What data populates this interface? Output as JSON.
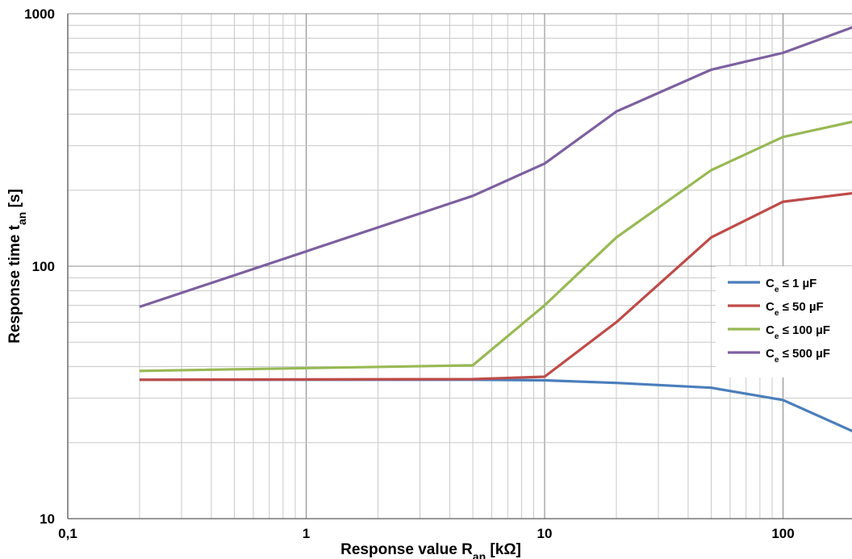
{
  "chart_data": {
    "type": "line",
    "x_scale": "log",
    "y_scale": "log",
    "xlim": [
      0.1,
      200
    ],
    "ylim": [
      10,
      1000
    ],
    "grid": true,
    "legend_position": "right",
    "x_ticks": [
      {
        "value": 0.1,
        "label": "0,1"
      },
      {
        "value": 1,
        "label": "1"
      },
      {
        "value": 10,
        "label": "10"
      },
      {
        "value": 100,
        "label": "100"
      }
    ],
    "y_ticks": [
      {
        "value": 10,
        "label": "10"
      },
      {
        "value": 100,
        "label": "100"
      },
      {
        "value": 1000,
        "label": "1000"
      }
    ],
    "xlabel": {
      "main": "Response value  R",
      "sub": "an",
      "tail": " [kΩ]"
    },
    "ylabel": {
      "main": "Response time  t",
      "sub": "an",
      "tail": " [s]"
    },
    "series": [
      {
        "name": {
          "main": "C",
          "sub": "e",
          "tail": " ≤ 1 µF"
        },
        "color": "#4a7ebb",
        "x": [
          0.2,
          5,
          10,
          20,
          50,
          100,
          200
        ],
        "y": [
          35.5,
          35.5,
          35.3,
          34.5,
          33,
          29.5,
          22
        ]
      },
      {
        "name": {
          "main": "C",
          "sub": "e",
          "tail": " ≤ 50 µF"
        },
        "color": "#be4b48",
        "x": [
          0.2,
          5,
          10,
          20,
          50,
          100,
          200
        ],
        "y": [
          35.5,
          35.7,
          36.5,
          60,
          130,
          180,
          195
        ]
      },
      {
        "name": {
          "main": "C",
          "sub": "e",
          "tail": " ≤ 100 µF"
        },
        "color": "#98b954",
        "x": [
          0.2,
          5,
          10,
          20,
          50,
          100,
          200
        ],
        "y": [
          38.5,
          40.5,
          70,
          130,
          240,
          325,
          375
        ]
      },
      {
        "name": {
          "main": "C",
          "sub": "e",
          "tail": " ≤ 500 µF"
        },
        "color": "#7d60a0",
        "x": [
          0.2,
          5,
          10,
          20,
          50,
          100,
          200
        ],
        "y": [
          69,
          190,
          255,
          410,
          600,
          700,
          890
        ]
      }
    ]
  }
}
